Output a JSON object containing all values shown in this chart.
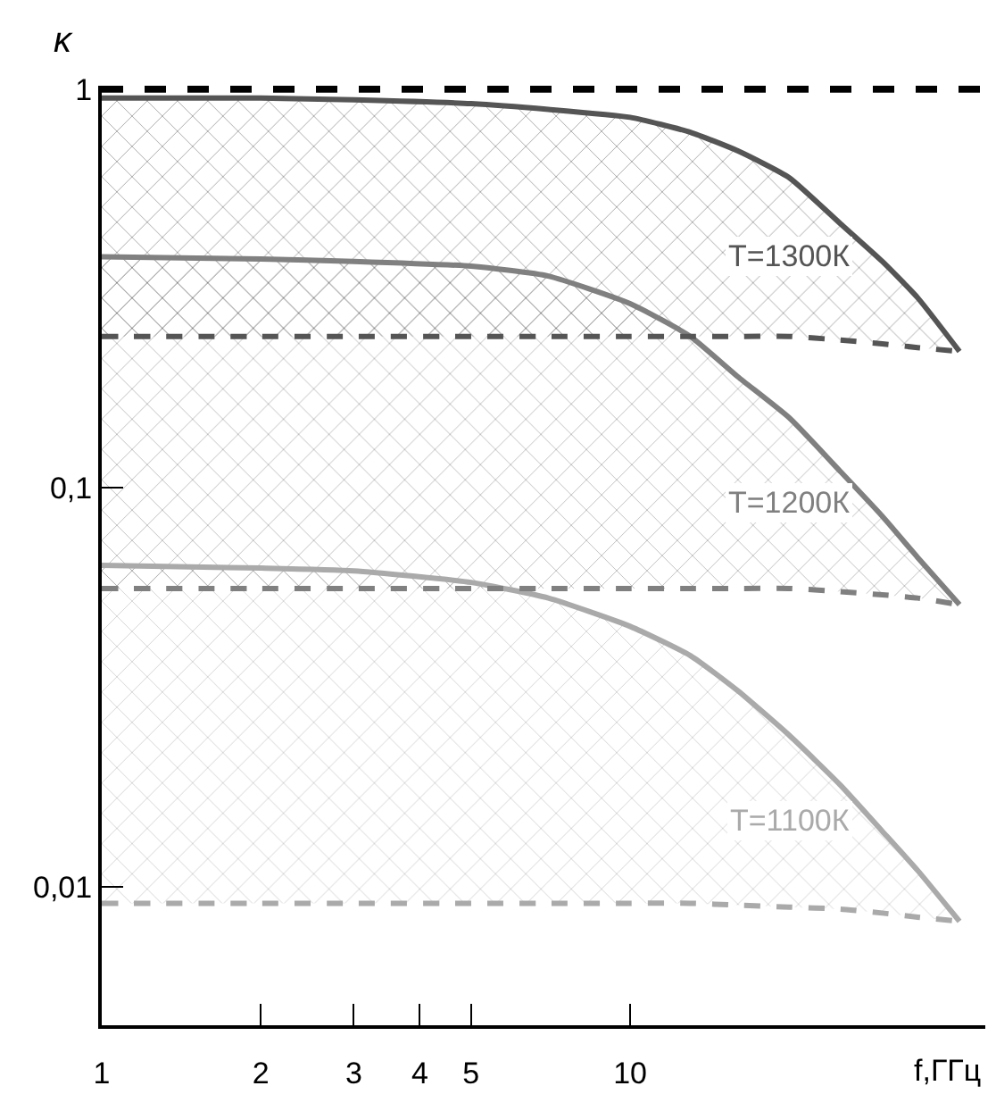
{
  "chart_data": {
    "type": "line",
    "xlabel": "f,ГГц",
    "ylabel": "κ",
    "log": "xy",
    "grid": false,
    "legend": false,
    "marker": "none",
    "x": [
      1,
      2,
      3,
      5,
      7,
      10,
      13,
      16,
      20,
      25,
      30,
      35,
      42
    ],
    "xlim": [
      1,
      47
    ],
    "xticks": [
      1,
      2,
      3,
      4,
      5,
      10
    ],
    "ylim": [
      0.0045,
      1.02
    ],
    "yticks": [
      {
        "value": 1,
        "label": "1"
      },
      {
        "value": 0.1,
        "label": "0,1"
      },
      {
        "value": 0.01,
        "label": "0,01"
      }
    ],
    "series": [
      {
        "name": "T=1300К",
        "color": "#555555",
        "line_style": "solid",
        "values": [
          0.95,
          0.95,
          0.94,
          0.92,
          0.89,
          0.85,
          0.78,
          0.7,
          0.6,
          0.46,
          0.37,
          0.3,
          0.22
        ]
      },
      {
        "color": "#555555",
        "line_style": "dashed",
        "values": [
          0.24,
          0.24,
          0.24,
          0.24,
          0.24,
          0.24,
          0.24,
          0.24,
          0.24,
          0.235,
          0.23,
          0.225,
          0.22
        ],
        "lower": [
          0.24,
          0.24,
          0.24,
          0.24,
          0.24,
          0.24,
          0.24,
          0.24,
          0.24,
          0.235,
          0.23,
          0.225,
          0.22
        ],
        "upper": [
          0.95,
          0.95,
          0.94,
          0.92,
          0.89,
          0.85,
          0.78,
          0.7,
          0.6,
          0.46,
          0.37,
          0.3,
          0.22
        ]
      },
      {
        "name": "T=1200К",
        "color": "#808080",
        "line_style": "solid",
        "values": [
          0.38,
          0.375,
          0.37,
          0.36,
          0.34,
          0.29,
          0.24,
          0.19,
          0.15,
          0.11,
          0.085,
          0.067,
          0.051
        ]
      },
      {
        "color": "#808080",
        "line_style": "dashed",
        "values": [
          0.056,
          0.056,
          0.056,
          0.056,
          0.056,
          0.056,
          0.056,
          0.056,
          0.056,
          0.055,
          0.054,
          0.053,
          0.051
        ],
        "lower": [
          0.056,
          0.056,
          0.056,
          0.056,
          0.056,
          0.056,
          0.056,
          0.056,
          0.056,
          0.055,
          0.054,
          0.053,
          0.051
        ],
        "upper": [
          0.38,
          0.375,
          0.37,
          0.36,
          0.34,
          0.29,
          0.24,
          0.19,
          0.15,
          0.11,
          0.085,
          0.067,
          0.051
        ]
      },
      {
        "name": "T=1100К",
        "color": "#aaaaaa",
        "line_style": "solid",
        "values": [
          0.064,
          0.063,
          0.062,
          0.058,
          0.053,
          0.045,
          0.038,
          0.031,
          0.024,
          0.018,
          0.0138,
          0.011,
          0.0082
        ]
      },
      {
        "color": "#aaaaaa",
        "line_style": "dashed",
        "values": [
          0.0091,
          0.0091,
          0.0091,
          0.0091,
          0.0091,
          0.0091,
          0.0091,
          0.009,
          0.0089,
          0.0088,
          0.0086,
          0.0084,
          0.0082
        ],
        "lower": [
          0.0091,
          0.0091,
          0.0091,
          0.0091,
          0.0091,
          0.0091,
          0.0091,
          0.009,
          0.0089,
          0.0088,
          0.0086,
          0.0084,
          0.0082
        ],
        "upper": [
          0.064,
          0.063,
          0.062,
          0.058,
          0.053,
          0.045,
          0.038,
          0.031,
          0.024,
          0.018,
          0.0138,
          0.011,
          0.0082
        ]
      }
    ],
    "ref_lines": [
      {
        "axis": "y",
        "value": 1,
        "color": "#000000",
        "line_style": "dashed"
      }
    ]
  }
}
